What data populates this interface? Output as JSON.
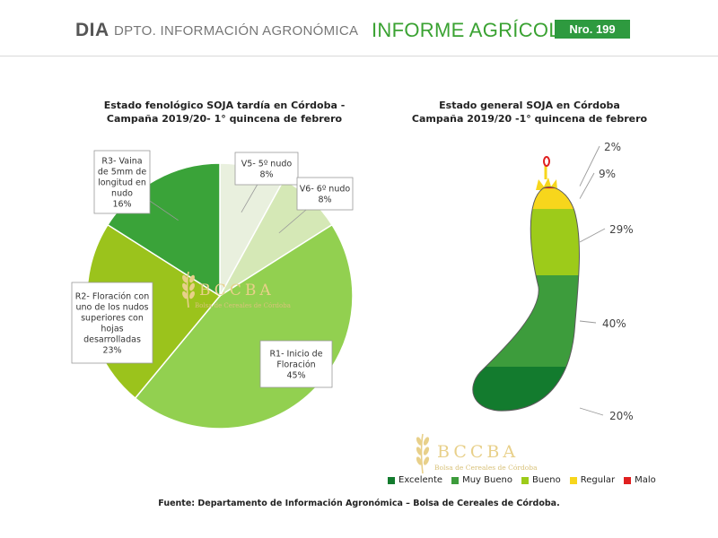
{
  "header": {
    "dia": "DIA",
    "dept": "DPTO. INFORMACIÓN AGRONÓMICA",
    "informe": "INFORME AGRÍCOLA",
    "nro": "Nro. 199"
  },
  "logo": {
    "letters": "BCCBA",
    "subtitle": "Bolsa de Cereales de Córdoba",
    "color": "#e8d08a"
  },
  "chart_data": [
    {
      "type": "pie",
      "title_line1": "Estado fenológico SOJA tardía en Córdoba -",
      "title_line2": "Campaña 2019/20- 1° quincena de febrero",
      "slices": [
        {
          "label_lines": [
            "V5- 5º nudo",
            "8%"
          ],
          "value": 8,
          "color": "#e9f0de"
        },
        {
          "label_lines": [
            "V6- 6º nudo",
            "8%"
          ],
          "value": 8,
          "color": "#d5e8b6"
        },
        {
          "label_lines": [
            "R1- Inicio de",
            "Floración",
            "45%"
          ],
          "value": 45,
          "color": "#92d050"
        },
        {
          "label_lines": [
            "R2- Floración con",
            "uno de los nudos",
            "superiores con",
            "hojas",
            "desarrolladas",
            "23%"
          ],
          "value": 23,
          "color": "#9bc31c"
        },
        {
          "label_lines": [
            "R3- Vaina",
            "de 5mm de",
            "longitud en",
            "nudo",
            "16%"
          ],
          "value": 16,
          "color": "#3aa339"
        }
      ]
    },
    {
      "type": "stacked-shape",
      "title_line1": "Estado general SOJA en Córdoba",
      "title_line2": "Campaña 2019/20 -1° quincena de febrero",
      "categories": [
        "Malo",
        "Regular",
        "Bueno",
        "Muy Bueno",
        "Excelente"
      ],
      "values": [
        2,
        9,
        29,
        40,
        20
      ],
      "value_labels": [
        "2%",
        "9%",
        "29%",
        "40%",
        "20%"
      ],
      "colors": [
        "#e02020",
        "#f7d61c",
        "#9dcb1a",
        "#3d9c3c",
        "#137b2e"
      ]
    }
  ],
  "legend": [
    {
      "label": "Excelente",
      "color": "#137b2e"
    },
    {
      "label": "Muy Bueno",
      "color": "#3d9c3c"
    },
    {
      "label": "Bueno",
      "color": "#9dcb1a"
    },
    {
      "label": "Regular",
      "color": "#f7d61c"
    },
    {
      "label": "Malo",
      "color": "#e02020"
    }
  ],
  "footer": "Fuente: Departamento de Información Agronómica – Bolsa de Cereales de Córdoba."
}
